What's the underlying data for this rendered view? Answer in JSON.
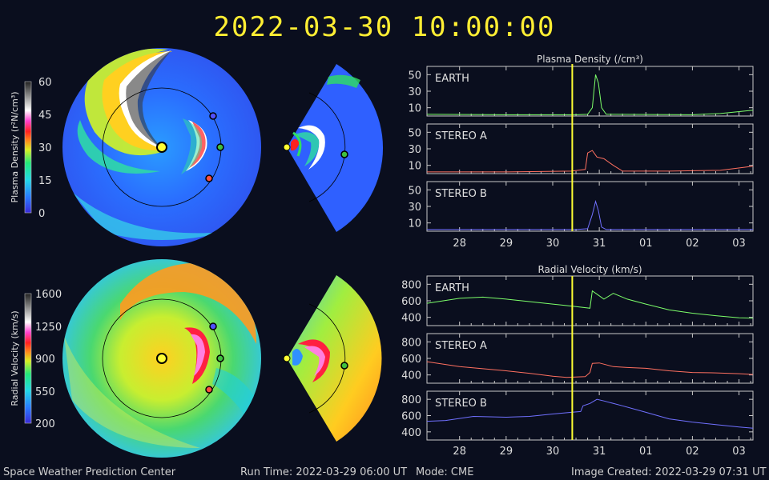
{
  "header": {
    "timestamp": "2022-03-30 10:00:00"
  },
  "footer": {
    "org": "Space Weather Prediction Center",
    "run_time": "Run Time: 2022-03-29 06:00 UT",
    "mode": "Mode: CME",
    "created": "Image Created: 2022-03-29 07:31 UT"
  },
  "colors": {
    "earth": "#7dff6a",
    "stereo_a": "#ff7060",
    "stereo_b": "#7070ff",
    "marker": "#ffff33",
    "sun": "#ffff33",
    "background": "#0a0e1e"
  },
  "colorbars": [
    {
      "label": "Plasma Density (r²N/cm³)",
      "ticks": [
        "60",
        "45",
        "30",
        "15",
        "0"
      ]
    },
    {
      "label": "Radial Velocity (km/s)",
      "ticks": [
        "1600",
        "1250",
        "900",
        "550",
        "200"
      ]
    }
  ],
  "chart_data": [
    {
      "type": "line",
      "title": "Plasma Density (/cm³)",
      "x_ticks": [
        "28",
        "29",
        "30",
        "31",
        "01",
        "02",
        "03"
      ],
      "x_range_days": [
        27.3,
        34.3
      ],
      "current_time_day": 30.42,
      "panels": [
        {
          "name": "EARTH",
          "ylim": [
            0,
            60
          ],
          "yticks": [
            "50",
            "30",
            "10"
          ],
          "points": [
            [
              27.3,
              2
            ],
            [
              29.0,
              1.5
            ],
            [
              30.5,
              1.5
            ],
            [
              30.75,
              2
            ],
            [
              30.85,
              10
            ],
            [
              30.92,
              50
            ],
            [
              30.98,
              40
            ],
            [
              31.05,
              10
            ],
            [
              31.15,
              2
            ],
            [
              33.0,
              1.5
            ],
            [
              33.6,
              3
            ],
            [
              34.3,
              7
            ]
          ]
        },
        {
          "name": "STEREO A",
          "ylim": [
            0,
            60
          ],
          "yticks": [
            "50",
            "30",
            "10"
          ],
          "points": [
            [
              27.3,
              2
            ],
            [
              29.0,
              2
            ],
            [
              30.4,
              3
            ],
            [
              30.7,
              5
            ],
            [
              30.75,
              25
            ],
            [
              30.85,
              28
            ],
            [
              30.95,
              20
            ],
            [
              31.1,
              18
            ],
            [
              31.3,
              10
            ],
            [
              31.5,
              3
            ],
            [
              32.5,
              3
            ],
            [
              33.6,
              4
            ],
            [
              34.3,
              9
            ]
          ]
        },
        {
          "name": "STEREO B",
          "ylim": [
            0,
            60
          ],
          "yticks": [
            "50",
            "30",
            "10"
          ],
          "points": [
            [
              27.3,
              2
            ],
            [
              30.5,
              2
            ],
            [
              30.75,
              3
            ],
            [
              30.85,
              20
            ],
            [
              30.92,
              36
            ],
            [
              30.98,
              25
            ],
            [
              31.05,
              5
            ],
            [
              31.15,
              2
            ],
            [
              34.3,
              2
            ]
          ]
        }
      ]
    },
    {
      "type": "line",
      "title": "Radial Velocity (km/s)",
      "x_ticks": [
        "28",
        "29",
        "30",
        "31",
        "01",
        "02",
        "03"
      ],
      "x_range_days": [
        27.3,
        34.3
      ],
      "current_time_day": 30.42,
      "panels": [
        {
          "name": "EARTH",
          "ylim": [
            300,
            900
          ],
          "yticks": [
            "800",
            "600",
            "400"
          ],
          "points": [
            [
              27.3,
              570
            ],
            [
              28.0,
              630
            ],
            [
              28.5,
              645
            ],
            [
              29.0,
              620
            ],
            [
              29.5,
              590
            ],
            [
              30.0,
              560
            ],
            [
              30.5,
              530
            ],
            [
              30.8,
              510
            ],
            [
              30.85,
              720
            ],
            [
              30.95,
              680
            ],
            [
              31.1,
              620
            ],
            [
              31.3,
              690
            ],
            [
              31.6,
              620
            ],
            [
              32.0,
              560
            ],
            [
              32.5,
              490
            ],
            [
              33.0,
              450
            ],
            [
              33.5,
              420
            ],
            [
              34.0,
              395
            ],
            [
              34.3,
              390
            ]
          ]
        },
        {
          "name": "STEREO A",
          "ylim": [
            300,
            900
          ],
          "yticks": [
            "800",
            "600",
            "400"
          ],
          "points": [
            [
              27.3,
              560
            ],
            [
              28.0,
              500
            ],
            [
              29.0,
              450
            ],
            [
              29.5,
              420
            ],
            [
              30.0,
              385
            ],
            [
              30.3,
              370
            ],
            [
              30.7,
              380
            ],
            [
              30.8,
              430
            ],
            [
              30.85,
              540
            ],
            [
              31.0,
              545
            ],
            [
              31.3,
              500
            ],
            [
              31.6,
              490
            ],
            [
              32.0,
              480
            ],
            [
              32.5,
              450
            ],
            [
              33.0,
              430
            ],
            [
              33.5,
              425
            ],
            [
              34.0,
              415
            ],
            [
              34.3,
              405
            ]
          ]
        },
        {
          "name": "STEREO B",
          "ylim": [
            300,
            900
          ],
          "yticks": [
            "800",
            "600",
            "400"
          ],
          "points": [
            [
              27.3,
              530
            ],
            [
              27.7,
              540
            ],
            [
              28.3,
              590
            ],
            [
              29.0,
              580
            ],
            [
              29.5,
              590
            ],
            [
              30.0,
              620
            ],
            [
              30.4,
              640
            ],
            [
              30.6,
              650
            ],
            [
              30.65,
              720
            ],
            [
              30.8,
              750
            ],
            [
              30.95,
              800
            ],
            [
              31.1,
              780
            ],
            [
              31.5,
              720
            ],
            [
              32.0,
              640
            ],
            [
              32.5,
              560
            ],
            [
              33.0,
              520
            ],
            [
              33.5,
              490
            ],
            [
              34.0,
              460
            ],
            [
              34.3,
              445
            ]
          ]
        }
      ]
    }
  ]
}
